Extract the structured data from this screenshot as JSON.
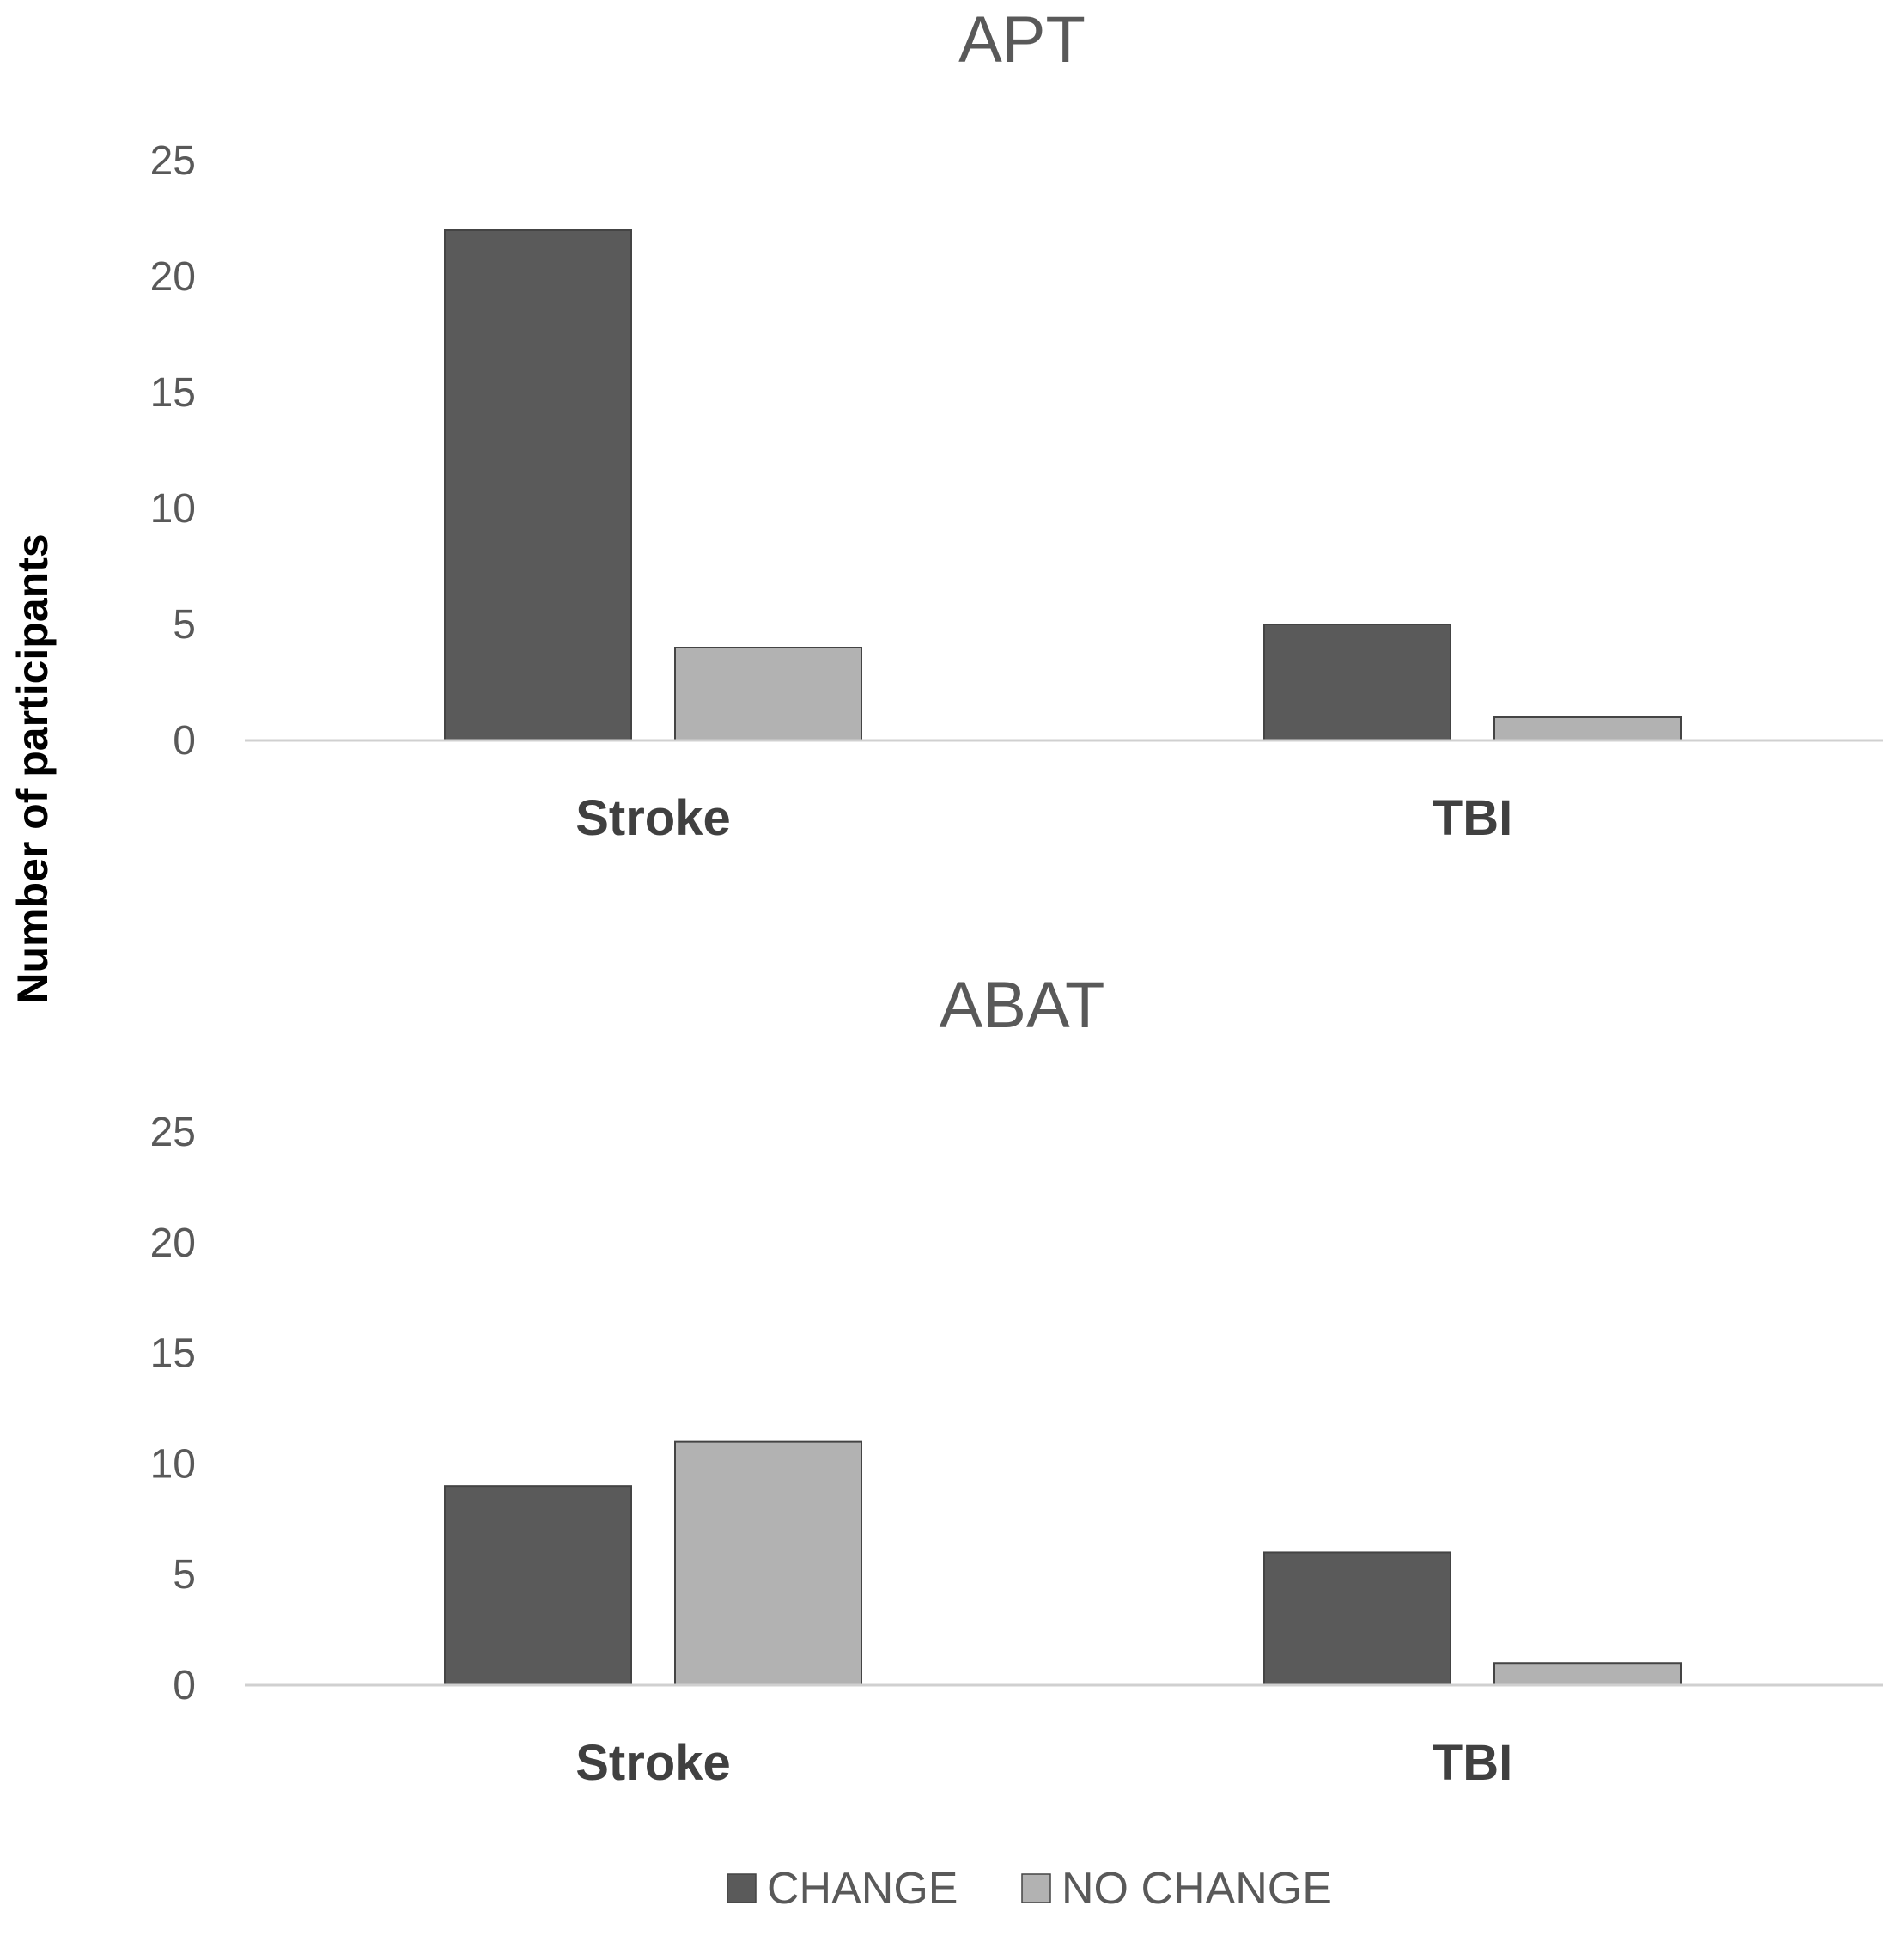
{
  "figure": {
    "ylabel": "Number of participants"
  },
  "legend": [
    {
      "name": "CHANGE",
      "color": "#5a5a5a"
    },
    {
      "name": "NO CHANGE",
      "color": "#b2b2b2"
    }
  ],
  "chart_data": [
    {
      "type": "bar",
      "title": "APT",
      "categories": [
        "Stroke",
        "TBI"
      ],
      "series": [
        {
          "name": "CHANGE",
          "values": [
            22,
            5
          ]
        },
        {
          "name": "NO CHANGE",
          "values": [
            4,
            1
          ]
        }
      ],
      "ylim": [
        0,
        25
      ],
      "yticks": [
        0,
        5,
        10,
        15,
        20,
        25
      ],
      "grid": false,
      "legend_position": "bottom-center"
    },
    {
      "type": "bar",
      "title": "ABAT",
      "categories": [
        "Stroke",
        "TBI"
      ],
      "series": [
        {
          "name": "CHANGE",
          "values": [
            9,
            6
          ]
        },
        {
          "name": "NO CHANGE",
          "values": [
            11,
            1
          ]
        }
      ],
      "ylim": [
        0,
        25
      ],
      "yticks": [
        0,
        5,
        10,
        15,
        20,
        25
      ],
      "grid": false,
      "legend_position": "bottom-center"
    }
  ]
}
